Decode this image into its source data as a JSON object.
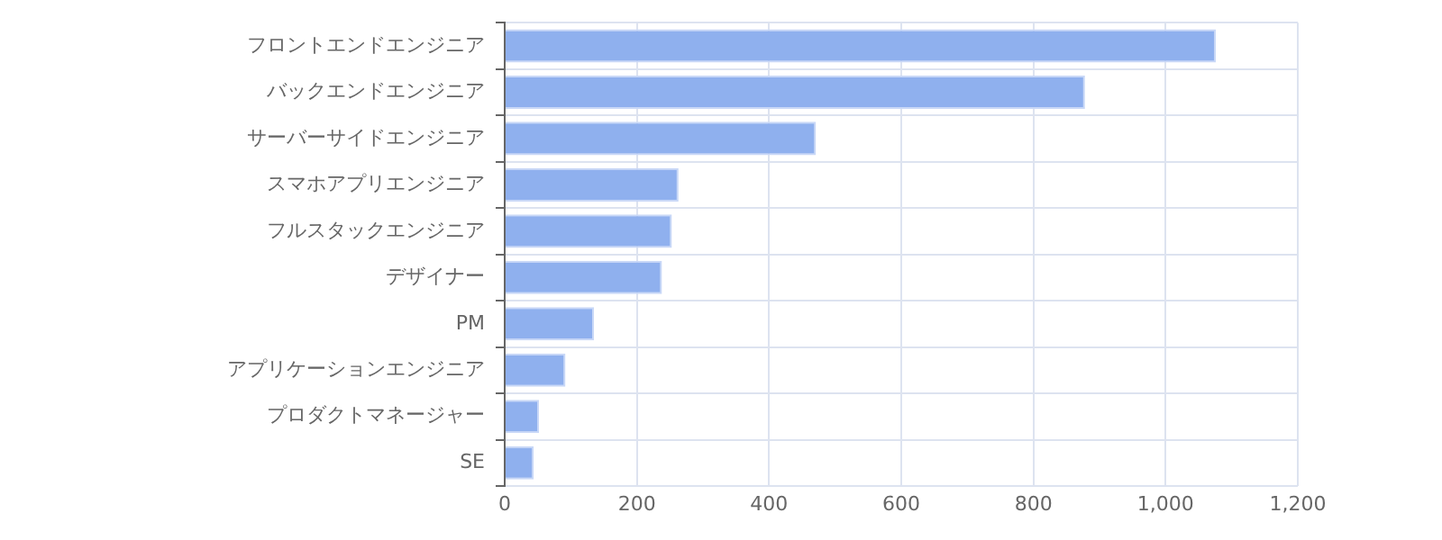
{
  "chart_data": {
    "type": "bar",
    "orientation": "horizontal",
    "categories": [
      "フロントエンドエンジニア",
      "バックエンドエンジニア",
      "サーバーサイドエンジニア",
      "スマホアプリエンジニア",
      "フルスタックエンジニア",
      "デザイナー",
      "PM",
      "アプリケーションエンジニア",
      "プロダクトマネージャー",
      "SE"
    ],
    "values": [
      1076,
      878,
      471,
      263,
      253,
      238,
      135,
      92,
      52,
      44
    ],
    "color": "#8fb0ee",
    "xlim": [
      0,
      1200
    ],
    "xticks": [
      0,
      200,
      400,
      600,
      800,
      {
        "value": 1000,
        "label": "1,000"
      },
      {
        "value": 1200,
        "label": "1,200"
      }
    ],
    "grid": true,
    "legend": false
  }
}
